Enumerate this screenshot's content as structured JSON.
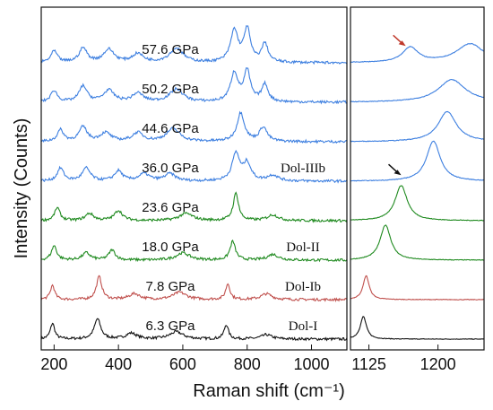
{
  "chart_data": {
    "type": "line",
    "layout_note_free": true,
    "xlabel": "Raman shift (cm⁻¹)",
    "ylabel": "Intensity (Counts)",
    "colors": {
      "blue": "#3d7fe0",
      "green": "#1f8a1f",
      "red": "#c0504d",
      "black": "#111111",
      "arrow_red": "#c0392b",
      "arrow_black": "#111111"
    },
    "panels": [
      {
        "id": "left",
        "xlim": [
          160,
          1110
        ],
        "xticks": [
          200,
          400,
          600,
          800,
          1000
        ],
        "xtick_labels": [
          "200",
          "400",
          "600",
          "800",
          "1000"
        ]
      },
      {
        "id": "right",
        "xlim": [
          1105,
          1250
        ],
        "xticks": [
          1125,
          1200
        ],
        "xtick_labels": [
          "1125",
          "1200"
        ]
      }
    ],
    "series": [
      {
        "name": "6.3 GPa",
        "phase": "Dol-I",
        "color": "black",
        "offset": 0,
        "left_peaks": [
          [
            195,
            1.1,
            8
          ],
          [
            335,
            1.4,
            12
          ],
          [
            440,
            0.4,
            20
          ],
          [
            580,
            0.5,
            25
          ],
          [
            735,
            1.0,
            8
          ],
          [
            860,
            0.3,
            20
          ]
        ],
        "right_peaks": [
          [
            1119,
            1.8,
            4
          ]
        ]
      },
      {
        "name": "7.8 GPa",
        "phase": "Dol-Ib",
        "color": "red",
        "offset": 1,
        "left_peaks": [
          [
            195,
            1.0,
            8
          ],
          [
            340,
            1.6,
            10
          ],
          [
            450,
            0.4,
            20
          ],
          [
            590,
            0.5,
            25
          ],
          [
            740,
            1.1,
            8
          ],
          [
            860,
            0.4,
            20
          ]
        ],
        "right_peaks": [
          [
            1122,
            1.9,
            4
          ]
        ]
      },
      {
        "name": "18.0 GPa",
        "phase": "Dol-II",
        "color": "green",
        "offset": 2,
        "left_peaks": [
          [
            200,
            1.0,
            10
          ],
          [
            300,
            0.5,
            15
          ],
          [
            380,
            0.7,
            12
          ],
          [
            600,
            0.5,
            25
          ],
          [
            755,
            1.3,
            10
          ],
          [
            880,
            0.4,
            20
          ]
        ],
        "right_peaks": [
          [
            1143,
            2.8,
            7
          ]
        ]
      },
      {
        "name": "23.6 GPa",
        "phase": "",
        "color": "green",
        "offset": 3,
        "left_peaks": [
          [
            210,
            0.9,
            10
          ],
          [
            310,
            0.5,
            15
          ],
          [
            400,
            0.7,
            15
          ],
          [
            610,
            0.5,
            25
          ],
          [
            765,
            1.9,
            10
          ],
          [
            880,
            0.4,
            20
          ]
        ],
        "right_peaks": [
          [
            1160,
            2.8,
            8
          ]
        ]
      },
      {
        "name": "36.0 GPa",
        "phase": "Dol-IIIb",
        "color": "blue",
        "offset": 4,
        "left_peaks": [
          [
            220,
            0.9,
            12
          ],
          [
            300,
            0.9,
            15
          ],
          [
            400,
            0.7,
            15
          ],
          [
            480,
            0.5,
            20
          ],
          [
            560,
            0.5,
            20
          ],
          [
            765,
            1.9,
            14
          ],
          [
            800,
            1.2,
            14
          ],
          [
            880,
            0.4,
            20
          ]
        ],
        "right_peaks": [
          [
            1195,
            3.2,
            9
          ]
        ]
      },
      {
        "name": "44.6 GPa",
        "phase": "",
        "color": "blue",
        "offset": 5,
        "left_peaks": [
          [
            220,
            0.8,
            12
          ],
          [
            290,
            1.0,
            15
          ],
          [
            360,
            0.6,
            20
          ],
          [
            460,
            0.6,
            20
          ],
          [
            570,
            0.9,
            25
          ],
          [
            780,
            2.0,
            14
          ],
          [
            850,
            1.0,
            14
          ]
        ],
        "right_peaks": [
          [
            1210,
            2.4,
            12
          ]
        ]
      },
      {
        "name": "50.2 GPa",
        "phase": "",
        "color": "blue",
        "offset": 6,
        "left_peaks": [
          [
            200,
            0.8,
            12
          ],
          [
            290,
            1.1,
            15
          ],
          [
            370,
            0.8,
            20
          ],
          [
            460,
            0.6,
            20
          ],
          [
            580,
            0.9,
            25
          ],
          [
            760,
            2.0,
            14
          ],
          [
            800,
            2.1,
            12
          ],
          [
            855,
            1.2,
            12
          ]
        ],
        "right_peaks": [
          [
            1215,
            1.8,
            18
          ]
        ]
      },
      {
        "name": "57.6 GPa",
        "phase": "",
        "color": "blue",
        "offset": 7,
        "left_peaks": [
          [
            200,
            0.8,
            12
          ],
          [
            290,
            1.0,
            15
          ],
          [
            370,
            0.9,
            20
          ],
          [
            460,
            0.6,
            20
          ],
          [
            580,
            1.0,
            25
          ],
          [
            760,
            2.2,
            14
          ],
          [
            800,
            2.3,
            12
          ],
          [
            855,
            1.3,
            12
          ]
        ],
        "right_peaks": [
          [
            1170,
            1.2,
            10
          ],
          [
            1235,
            1.5,
            18
          ]
        ]
      }
    ],
    "annotations": [
      {
        "panel": "right",
        "type": "arrow",
        "color": "arrow_red",
        "at_series": "57.6 GPa",
        "x": 1165
      },
      {
        "panel": "right",
        "type": "arrow",
        "color": "arrow_black",
        "at_series": "36.0 GPa",
        "x": 1160
      }
    ]
  }
}
